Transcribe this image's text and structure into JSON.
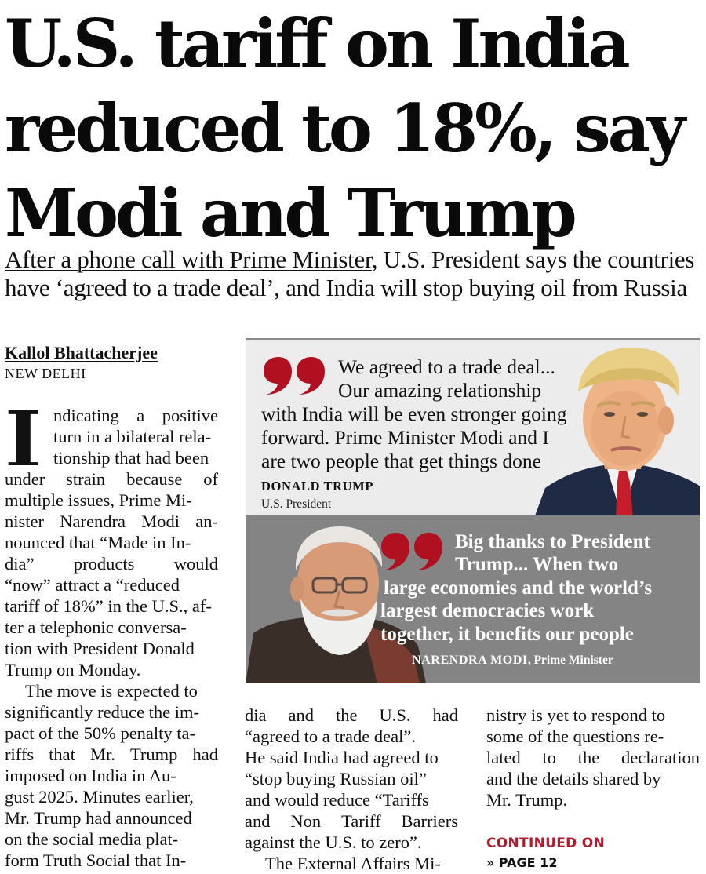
{
  "headline": {
    "lines": [
      "U.S. tariff on India",
      "reduced to 18%, say",
      "Modi and Trump"
    ]
  },
  "subhead": {
    "underlined": "After a phone call with Prime Minister",
    "line1_rest": ", U.S. President says the countries",
    "line2": "have ‘agreed to a trade deal’, and India will stop buying oil from Russia"
  },
  "byline": "Kallol Bhattacherjee",
  "dateline": "NEW DELHI",
  "body": {
    "dropcap": "I",
    "col1": [
      [
        "ndicating",
        "a",
        "positive"
      ],
      [
        "turn in a bilateral rela-"
      ],
      [
        "tionship that had been"
      ],
      [
        "under",
        "strain",
        "because",
        "of"
      ],
      [
        "multiple issues, Prime Mi-"
      ],
      [
        "nister",
        "Narendra",
        "Modi",
        "an-"
      ],
      [
        "nounced that “Made in In-"
      ],
      [
        "dia”",
        "products",
        "would"
      ],
      [
        "“now” attract a “reduced"
      ],
      [
        "tariff of 18%” in the U.S., af-"
      ],
      [
        "ter a telephonic conversa-"
      ],
      [
        "tion with President Donald"
      ],
      [
        "Trump on Monday."
      ],
      [
        "The move is expected to"
      ],
      [
        "significantly reduce the im-"
      ],
      [
        "pact of the 50% penalty ta-"
      ],
      [
        "riffs",
        "that",
        "Mr.",
        "Trump",
        "had"
      ],
      [
        "imposed on India in Au-"
      ],
      [
        "gust 2025. Minutes earlier,"
      ],
      [
        "Mr. Trump had announced"
      ],
      [
        "on the social media plat-"
      ],
      [
        "form Truth Social that In-"
      ]
    ],
    "col2": [
      [
        "dia",
        "and",
        "the",
        "U.S.",
        "had"
      ],
      [
        "“agreed to a trade deal”."
      ],
      [
        "He said India had agreed to"
      ],
      [
        "“stop buying Russian oil”"
      ],
      [
        "and would reduce “Tariffs"
      ],
      [
        "and",
        "Non",
        "Tariff",
        "Barriers"
      ],
      [
        "against the U.S. to zero”."
      ],
      [
        "The External Affairs Mi-"
      ]
    ],
    "col3": [
      [
        "nistry is yet to respond to"
      ],
      [
        "some of the questions re-"
      ],
      [
        "lated",
        "to",
        "the",
        "declaration"
      ],
      [
        "and the details shared by"
      ],
      [
        "Mr. Trump."
      ]
    ],
    "continued_label": "CONTINUED ON",
    "page_ref": "» PAGE 12"
  },
  "quotes": {
    "trump": {
      "lines": [
        "We agreed to a trade deal...",
        "Our amazing relationship",
        "with India will be even stronger going",
        "forward. Prime Minister Modi and I",
        "are two people that get things done"
      ],
      "speaker": "DONALD TRUMP",
      "title": "U.S. President"
    },
    "modi": {
      "lines": [
        "Big thanks to President",
        "Trump... When two",
        "large economies and the world’s",
        "largest democracies work",
        "together, it benefits our people"
      ],
      "speaker": "NARENDRA MODI",
      "title": ", Prime Minister"
    }
  },
  "colors": {
    "accent_red": "#b5192b",
    "quote_mark_red": "#b01020",
    "panel_light": "#ececec",
    "panel_dark": "#848484"
  }
}
